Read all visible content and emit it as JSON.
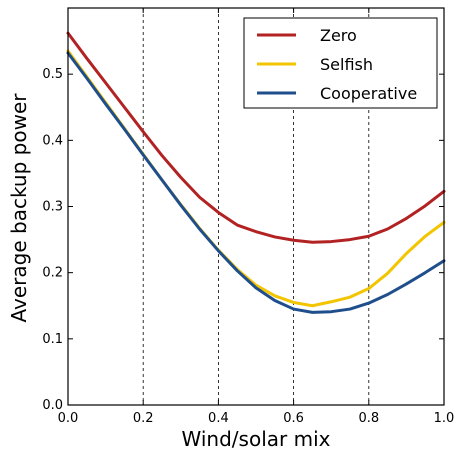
{
  "chart_data": {
    "type": "line",
    "title": "",
    "xlabel": "Wind/solar mix",
    "ylabel": "Average backup power",
    "xlim": [
      0.0,
      1.0
    ],
    "ylim": [
      0.0,
      0.6
    ],
    "xticks": [
      "0.0",
      "0.2",
      "0.4",
      "0.6",
      "0.8",
      "1.0"
    ],
    "yticks": [
      "0.0",
      "0.1",
      "0.2",
      "0.3",
      "0.4",
      "0.5"
    ],
    "vertical_gridlines_at": [
      0.2,
      0.4,
      0.6,
      0.8
    ],
    "grid": "dashed vertical lines",
    "legend_position": "top-right",
    "x": [
      0.0,
      0.05,
      0.1,
      0.15,
      0.2,
      0.25,
      0.3,
      0.35,
      0.4,
      0.45,
      0.5,
      0.55,
      0.6,
      0.65,
      0.7,
      0.75,
      0.8,
      0.85,
      0.9,
      0.95,
      1.0
    ],
    "series": [
      {
        "name": "Zero",
        "color": "#b22222",
        "values": [
          0.562,
          0.524,
          0.487,
          0.45,
          0.413,
          0.377,
          0.344,
          0.314,
          0.291,
          0.272,
          0.262,
          0.254,
          0.249,
          0.246,
          0.247,
          0.25,
          0.255,
          0.266,
          0.282,
          0.301,
          0.323
        ]
      },
      {
        "name": "Selfish",
        "color": "#f2c500",
        "values": [
          0.535,
          0.496,
          0.457,
          0.418,
          0.379,
          0.34,
          0.303,
          0.267,
          0.234,
          0.205,
          0.181,
          0.165,
          0.155,
          0.15,
          0.156,
          0.163,
          0.176,
          0.199,
          0.229,
          0.255,
          0.276
        ]
      },
      {
        "name": "Cooperative",
        "color": "#1f4e8c",
        "values": [
          0.532,
          0.494,
          0.455,
          0.417,
          0.378,
          0.34,
          0.302,
          0.266,
          0.233,
          0.203,
          0.177,
          0.158,
          0.145,
          0.14,
          0.141,
          0.145,
          0.154,
          0.167,
          0.183,
          0.2,
          0.218
        ]
      }
    ]
  }
}
